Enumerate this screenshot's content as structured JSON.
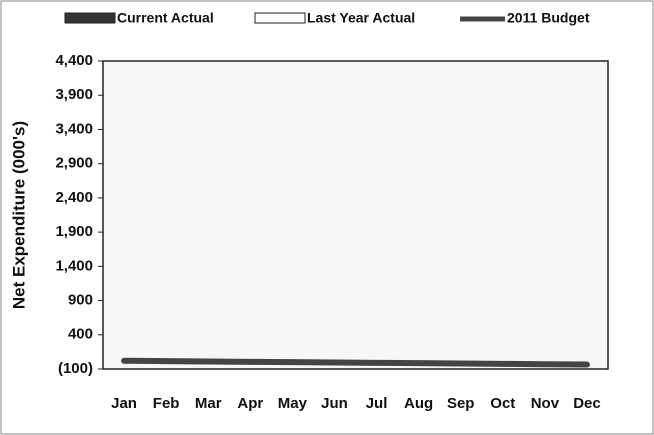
{
  "chart_data": {
    "type": "bar",
    "ylabel": "Net Expenditure (000's)",
    "categories": [
      "Jan",
      "Feb",
      "Mar",
      "Apr",
      "May",
      "Jun",
      "Jul",
      "Aug",
      "Sep",
      "Oct",
      "Nov",
      "Dec"
    ],
    "series": [
      {
        "name": "Current Actual",
        "type": "bar",
        "color": "#333333",
        "values": [
          0,
          0,
          0,
          0,
          0,
          0,
          0,
          0,
          0,
          0,
          0,
          0
        ]
      },
      {
        "name": "Last Year Actual",
        "type": "bar",
        "color": "#ffffff",
        "values": [
          0,
          0,
          0,
          0,
          0,
          0,
          0,
          0,
          0,
          0,
          0,
          0
        ]
      },
      {
        "name": "2011 Budget",
        "type": "line",
        "color": "#444444",
        "values": [
          20,
          15,
          10,
          5,
          0,
          -5,
          -10,
          -15,
          -20,
          -25,
          -30,
          -35
        ]
      }
    ],
    "ylim": [
      -100,
      4400
    ],
    "yticks": [
      {
        "value": -100,
        "label": "(100)"
      },
      400,
      900,
      {
        "value": 1400,
        "label": "1,400"
      },
      {
        "value": 1900,
        "label": "1,900"
      },
      {
        "value": 2400,
        "label": "2,400"
      },
      {
        "value": 2900,
        "label": "2,900"
      },
      {
        "value": 3400,
        "label": "3,400"
      },
      {
        "value": 3900,
        "label": "3,900"
      },
      {
        "value": 4400,
        "label": "4,400"
      }
    ],
    "legend": "top"
  }
}
